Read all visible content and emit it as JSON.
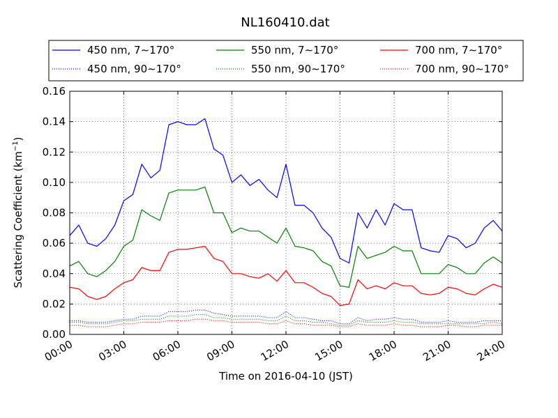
{
  "chart_data": {
    "type": "line",
    "title": "NL160410.dat",
    "xlabel": "Time on 2016-04-10 (JST)",
    "ylabel_main": "Scattering Coefficient (km",
    "ylabel_sup": "−1",
    "ylabel_end": ")",
    "xlim": [
      0,
      24
    ],
    "ylim": [
      0,
      0.16
    ],
    "x_ticks": [
      0,
      3,
      6,
      9,
      12,
      15,
      18,
      21,
      24
    ],
    "x_tick_labels": [
      "00:00",
      "03:00",
      "06:00",
      "09:00",
      "12:00",
      "15:00",
      "18:00",
      "21:00",
      "24:00"
    ],
    "y_ticks": [
      0,
      0.02,
      0.04,
      0.06,
      0.08,
      0.1,
      0.12,
      0.14,
      0.16
    ],
    "y_tick_labels": [
      "0.00",
      "0.02",
      "0.04",
      "0.06",
      "0.08",
      "0.10",
      "0.12",
      "0.14",
      "0.16"
    ],
    "grid": true,
    "legend_position": "top, above plot",
    "x": [
      0,
      0.5,
      1,
      1.5,
      2,
      2.5,
      3,
      3.5,
      4,
      4.5,
      5,
      5.5,
      6,
      6.5,
      7,
      7.5,
      8,
      8.5,
      9,
      9.5,
      10,
      10.5,
      11,
      11.5,
      12,
      12.5,
      13,
      13.5,
      14,
      14.5,
      15,
      15.5,
      16,
      16.5,
      17,
      17.5,
      18,
      18.5,
      19,
      19.5,
      20,
      20.5,
      21,
      21.5,
      22,
      22.5,
      23,
      23.5,
      24
    ],
    "series": [
      {
        "name": "450 nm, 7∼170°",
        "color": "#0000ff",
        "style": "solid",
        "values": [
          0.065,
          0.072,
          0.06,
          0.058,
          0.063,
          0.072,
          0.088,
          0.092,
          0.112,
          0.103,
          0.108,
          0.138,
          0.14,
          0.138,
          0.138,
          0.142,
          0.122,
          0.118,
          0.1,
          0.105,
          0.098,
          0.102,
          0.095,
          0.09,
          0.112,
          0.085,
          0.085,
          0.08,
          0.07,
          0.064,
          0.05,
          0.047,
          0.08,
          0.07,
          0.082,
          0.072,
          0.086,
          0.082,
          0.082,
          0.057,
          0.055,
          0.054,
          0.065,
          0.063,
          0.057,
          0.06,
          0.07,
          0.075,
          0.068
        ]
      },
      {
        "name": "550 nm, 7∼170°",
        "color": "#008000",
        "style": "solid",
        "values": [
          0.045,
          0.048,
          0.04,
          0.038,
          0.042,
          0.048,
          0.058,
          0.062,
          0.082,
          0.078,
          0.075,
          0.093,
          0.095,
          0.095,
          0.095,
          0.097,
          0.08,
          0.08,
          0.067,
          0.07,
          0.068,
          0.068,
          0.064,
          0.06,
          0.07,
          0.058,
          0.057,
          0.055,
          0.048,
          0.045,
          0.032,
          0.031,
          0.058,
          0.05,
          0.052,
          0.054,
          0.058,
          0.055,
          0.055,
          0.04,
          0.04,
          0.04,
          0.046,
          0.044,
          0.04,
          0.04,
          0.047,
          0.051,
          0.047
        ]
      },
      {
        "name": "700 nm, 7∼170°",
        "color": "#ff0000",
        "style": "solid",
        "values": [
          0.031,
          0.03,
          0.025,
          0.023,
          0.025,
          0.03,
          0.034,
          0.036,
          0.044,
          0.042,
          0.042,
          0.054,
          0.056,
          0.056,
          0.057,
          0.058,
          0.05,
          0.048,
          0.04,
          0.04,
          0.038,
          0.037,
          0.04,
          0.035,
          0.042,
          0.034,
          0.034,
          0.031,
          0.027,
          0.025,
          0.019,
          0.02,
          0.036,
          0.03,
          0.032,
          0.03,
          0.034,
          0.032,
          0.032,
          0.027,
          0.026,
          0.027,
          0.031,
          0.03,
          0.027,
          0.026,
          0.03,
          0.033,
          0.031
        ]
      },
      {
        "name": "450 nm, 90∼170°",
        "color": "#0000ff",
        "style": "dotted",
        "values": [
          0.009,
          0.009,
          0.008,
          0.008,
          0.008,
          0.009,
          0.01,
          0.01,
          0.012,
          0.012,
          0.012,
          0.015,
          0.015,
          0.015,
          0.016,
          0.016,
          0.014,
          0.013,
          0.012,
          0.012,
          0.012,
          0.012,
          0.011,
          0.011,
          0.015,
          0.011,
          0.011,
          0.01,
          0.009,
          0.009,
          0.007,
          0.007,
          0.011,
          0.009,
          0.01,
          0.01,
          0.011,
          0.01,
          0.01,
          0.008,
          0.008,
          0.008,
          0.009,
          0.008,
          0.008,
          0.008,
          0.009,
          0.009,
          0.009
        ]
      },
      {
        "name": "550 nm, 90∼170°",
        "color": "#008000",
        "style": "dotted",
        "values": [
          0.008,
          0.008,
          0.007,
          0.007,
          0.007,
          0.008,
          0.009,
          0.009,
          0.01,
          0.01,
          0.01,
          0.012,
          0.012,
          0.012,
          0.013,
          0.013,
          0.011,
          0.011,
          0.01,
          0.01,
          0.01,
          0.01,
          0.009,
          0.009,
          0.012,
          0.009,
          0.009,
          0.008,
          0.008,
          0.007,
          0.006,
          0.006,
          0.009,
          0.008,
          0.008,
          0.008,
          0.009,
          0.008,
          0.008,
          0.007,
          0.007,
          0.007,
          0.007,
          0.007,
          0.007,
          0.007,
          0.007,
          0.008,
          0.007
        ]
      },
      {
        "name": "700 nm, 90∼170°",
        "color": "#ff0000",
        "style": "dotted",
        "values": [
          0.006,
          0.006,
          0.005,
          0.005,
          0.005,
          0.006,
          0.007,
          0.007,
          0.008,
          0.008,
          0.008,
          0.009,
          0.009,
          0.009,
          0.01,
          0.01,
          0.009,
          0.009,
          0.008,
          0.008,
          0.008,
          0.008,
          0.007,
          0.007,
          0.009,
          0.007,
          0.007,
          0.006,
          0.006,
          0.006,
          0.005,
          0.005,
          0.007,
          0.006,
          0.006,
          0.006,
          0.007,
          0.006,
          0.006,
          0.005,
          0.005,
          0.005,
          0.006,
          0.006,
          0.005,
          0.005,
          0.006,
          0.006,
          0.006
        ]
      }
    ]
  }
}
